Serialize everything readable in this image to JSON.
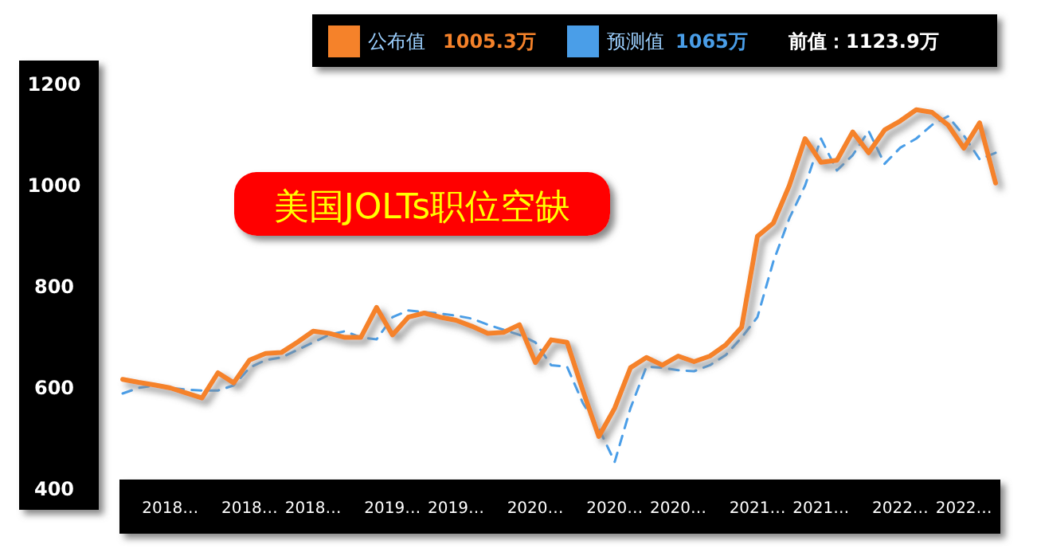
{
  "chart_data": {
    "type": "line",
    "title": "美国JOLTs职位空缺",
    "categories": [
      null,
      null,
      null,
      "2018…",
      null,
      null,
      null,
      null,
      "2018…",
      null,
      null,
      null,
      "2018…",
      null,
      null,
      null,
      null,
      "2019…",
      null,
      null,
      null,
      "2019…",
      null,
      null,
      null,
      null,
      "2020…",
      null,
      null,
      null,
      null,
      "2020…",
      null,
      null,
      null,
      "2020…",
      null,
      null,
      null,
      null,
      "2021…",
      null,
      null,
      null,
      "2021…",
      null,
      null,
      null,
      null,
      "2022…",
      null,
      null,
      null,
      "2022…",
      null,
      null
    ],
    "series": [
      {
        "name": "公布值",
        "color": "#f5822a",
        "line_style": "solid",
        "values": [
          617,
          611,
          606,
          600,
          590,
          580,
          630,
          610,
          655,
          668,
          670,
          690,
          712,
          708,
          700,
          700,
          759,
          705,
          740,
          748,
          740,
          734,
          722,
          708,
          710,
          725,
          650,
          695,
          690,
          595,
          504,
          560,
          640,
          660,
          645,
          663,
          652,
          663,
          685,
          720,
          900,
          926,
          1000,
          1093,
          1046,
          1050,
          1106,
          1065,
          1110,
          1128,
          1150,
          1145,
          1120,
          1074,
          1124,
          1005
        ]
      },
      {
        "name": "预测值",
        "color": "#4a9ee8",
        "line_style": "dashed",
        "values": [
          589,
          600,
          605,
          600,
          597,
          595,
          595,
          605,
          640,
          655,
          660,
          675,
          690,
          705,
          712,
          700,
          696,
          740,
          753,
          750,
          747,
          743,
          737,
          725,
          715,
          705,
          690,
          645,
          642,
          570,
          520,
          454,
          560,
          642,
          640,
          635,
          633,
          645,
          665,
          700,
          740,
          850,
          935,
          1000,
          1093,
          1030,
          1060,
          1108,
          1043,
          1075,
          1093,
          1120,
          1137,
          1099,
          1052,
          1065
        ]
      }
    ],
    "annotations": [
      "1005.3万",
      "1065万",
      "前值：1123.9万"
    ],
    "ylim": [
      400,
      1200
    ],
    "yticks": [
      400,
      600,
      800,
      1000,
      1200
    ],
    "legend": "top",
    "grid": false,
    "marker": "none"
  }
}
